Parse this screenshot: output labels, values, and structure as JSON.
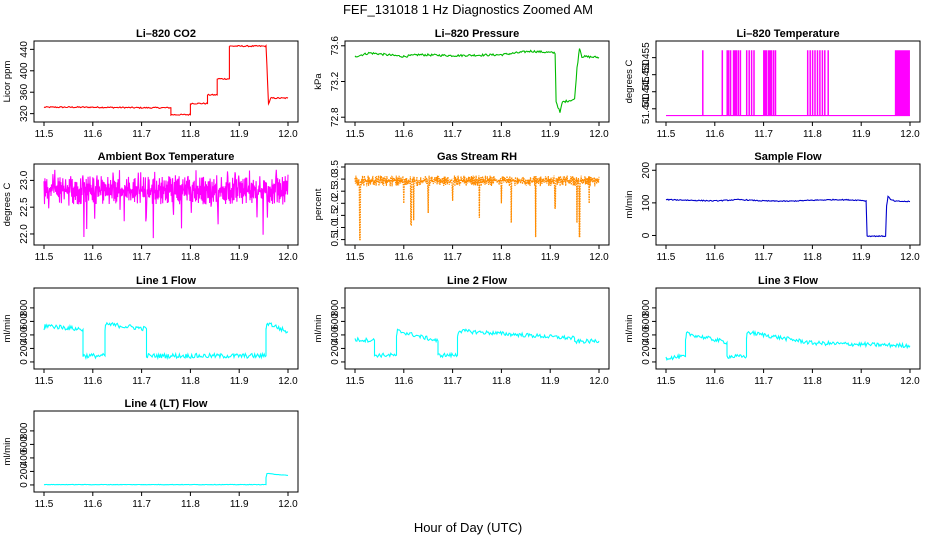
{
  "figure": {
    "title": "FEF_131018  1 Hz Diagnostics Zoomed AM",
    "xlabel": "Hour of Day (UTC)"
  },
  "chart_data": [
    {
      "type": "line",
      "title": "Li–820 CO2",
      "ylabel": "Licor ppm",
      "color": "#ff0000",
      "xlim": [
        11.5,
        12.0
      ],
      "ylim": [
        310,
        450
      ],
      "xticks": [
        "11.5",
        "11.6",
        "11.7",
        "11.8",
        "11.9",
        "12.0"
      ],
      "yticks": [
        "320",
        "360",
        "400",
        "440"
      ],
      "series": [
        {
          "x": [
            11.5,
            11.6,
            11.7,
            11.76,
            11.76,
            11.8,
            11.8,
            11.835,
            11.835,
            11.855,
            11.855,
            11.88,
            11.88,
            11.925,
            11.955,
            11.96,
            11.965,
            12.0
          ],
          "y": [
            332,
            332,
            331,
            331,
            318,
            318,
            339,
            339,
            355,
            355,
            385,
            385,
            446,
            446,
            446,
            338,
            349,
            349
          ],
          "noise": 1.2
        }
      ]
    },
    {
      "type": "line",
      "title": "Li–820 Pressure",
      "ylabel": "kPa",
      "color": "#00bb00",
      "xlim": [
        11.5,
        12.0
      ],
      "ylim": [
        72.78,
        73.62
      ],
      "xticks": [
        "11.5",
        "11.6",
        "11.7",
        "11.8",
        "11.9",
        "12.0"
      ],
      "yticks": [
        "72.8",
        "73.2",
        "73.6"
      ],
      "series": [
        {
          "x": [
            11.5,
            11.53,
            11.6,
            11.63,
            11.7,
            11.8,
            11.86,
            11.91,
            11.912,
            11.92,
            11.925,
            11.95,
            11.955,
            11.96,
            11.965,
            12.0
          ],
          "y": [
            73.48,
            73.52,
            73.48,
            73.5,
            73.49,
            73.5,
            73.54,
            73.52,
            72.98,
            72.85,
            72.97,
            73.0,
            73.35,
            73.58,
            73.48,
            73.47
          ],
          "noise": 0.012
        }
      ]
    },
    {
      "type": "line",
      "title": "Li–820 Temperature",
      "ylabel": "degrees C",
      "color": "#ff00ff",
      "xlim": [
        11.5,
        12.0
      ],
      "ylim": [
        51.437,
        51.459
      ],
      "xticks": [
        "11.5",
        "11.6",
        "11.7",
        "11.8",
        "11.9",
        "12.0"
      ],
      "yticks": [
        "51.440",
        "51.445",
        "51.450",
        "51.455"
      ],
      "baseline": 51.438,
      "high": 51.457,
      "spikes": [
        11.575,
        11.615,
        11.625,
        11.628,
        11.632,
        11.638,
        11.641,
        11.644,
        11.648,
        11.652,
        11.665,
        11.67,
        11.675,
        11.68,
        11.7,
        11.703,
        11.706,
        11.71,
        11.713,
        11.716,
        11.72,
        11.724,
        11.79,
        11.795,
        11.8,
        11.805,
        11.81,
        11.815,
        11.82,
        11.825,
        11.832,
        11.97,
        11.972,
        11.975,
        11.978,
        11.98,
        11.982,
        11.985,
        11.988,
        11.99,
        11.992,
        11.995,
        11.998
      ]
    },
    {
      "type": "line",
      "title": "Ambient Box Temperature",
      "ylabel": "degrees C",
      "color": "#ff00ff",
      "xlim": [
        11.5,
        12.0
      ],
      "ylim": [
        21.85,
        23.25
      ],
      "xticks": [
        "11.5",
        "11.6",
        "11.7",
        "11.8",
        "11.9",
        "12.0"
      ],
      "yticks": [
        "22.0",
        "22.5",
        "23.0"
      ],
      "band": [
        22.55,
        23.08
      ],
      "extremes": [
        21.9,
        23.2
      ]
    },
    {
      "type": "line",
      "title": "Gas Stream RH",
      "ylabel": "percent",
      "color": "#ff8c00",
      "xlim": [
        11.5,
        12.0
      ],
      "ylim": [
        0.4,
        3.5
      ],
      "xticks": [
        "11.5",
        "11.6",
        "11.7",
        "11.8",
        "11.9",
        "12.0"
      ],
      "yticks": [
        "0.5",
        "1.0",
        "1.5",
        "2.0",
        "2.5",
        "3.0",
        "3.5"
      ],
      "band": [
        2.7,
        3.15
      ],
      "dips": [
        {
          "x": 11.51,
          "y": 0.5
        },
        {
          "x": 11.6,
          "y": 2.0
        },
        {
          "x": 11.615,
          "y": 1.1
        },
        {
          "x": 11.62,
          "y": 1.3
        },
        {
          "x": 11.65,
          "y": 1.6
        },
        {
          "x": 11.7,
          "y": 2.1
        },
        {
          "x": 11.755,
          "y": 1.4
        },
        {
          "x": 11.8,
          "y": 2.0
        },
        {
          "x": 11.82,
          "y": 1.2
        },
        {
          "x": 11.87,
          "y": 0.6
        },
        {
          "x": 11.91,
          "y": 1.8
        },
        {
          "x": 11.955,
          "y": 1.2
        },
        {
          "x": 11.96,
          "y": 0.6
        },
        {
          "x": 11.98,
          "y": 2.0
        }
      ]
    },
    {
      "type": "line",
      "title": "Sample Flow",
      "ylabel": "ml/min",
      "color": "#0000cc",
      "xlim": [
        11.5,
        12.0
      ],
      "ylim": [
        -20,
        210
      ],
      "xticks": [
        "11.5",
        "11.6",
        "11.7",
        "11.8",
        "11.9",
        "12.0"
      ],
      "yticks": [
        "0",
        "100",
        "200"
      ],
      "series": [
        {
          "x": [
            11.5,
            11.55,
            11.6,
            11.65,
            11.7,
            11.75,
            11.8,
            11.85,
            11.9,
            11.91,
            11.912,
            11.95,
            11.952,
            11.955,
            11.96,
            11.97,
            12.0
          ],
          "y": [
            110,
            108,
            106,
            110,
            106,
            105,
            108,
            110,
            108,
            106,
            -2,
            -2,
            90,
            120,
            110,
            105,
            104
          ],
          "noise": 1.5
        }
      ]
    },
    {
      "type": "line",
      "title": "Line 1 Flow",
      "ylabel": "ml/min",
      "color": "#00ffff",
      "xlim": [
        11.5,
        12.0
      ],
      "ylim": [
        -60,
        1050
      ],
      "xticks": [
        "11.5",
        "11.6",
        "11.7",
        "11.8",
        "11.9",
        "12.0"
      ],
      "yticks": [
        "0",
        "200",
        "400",
        "600",
        "800"
      ],
      "series": [
        {
          "x": [
            11.5,
            11.502,
            11.58,
            11.58,
            11.625,
            11.625,
            11.627,
            11.71,
            11.71,
            11.955,
            11.955,
            11.958,
            12.0
          ],
          "y": [
            460,
            540,
            480,
            90,
            90,
            470,
            560,
            490,
            90,
            90,
            500,
            580,
            440
          ],
          "noise": 35
        }
      ]
    },
    {
      "type": "line",
      "title": "Line 2 Flow",
      "ylabel": "ml/min",
      "color": "#00ffff",
      "xlim": [
        11.5,
        12.0
      ],
      "ylim": [
        -60,
        1050
      ],
      "xticks": [
        "11.5",
        "11.6",
        "11.7",
        "11.8",
        "11.9",
        "12.0"
      ],
      "yticks": [
        "0",
        "200",
        "400",
        "600",
        "800"
      ],
      "series": [
        {
          "x": [
            11.5,
            11.54,
            11.54,
            11.585,
            11.585,
            11.587,
            11.67,
            11.67,
            11.71,
            11.71,
            11.712,
            11.95,
            11.95,
            12.0
          ],
          "y": [
            330,
            320,
            100,
            100,
            360,
            460,
            310,
            100,
            100,
            380,
            460,
            350,
            300,
            310
          ],
          "noise": 30
        }
      ]
    },
    {
      "type": "line",
      "title": "Line 3 Flow",
      "ylabel": "ml/min",
      "color": "#00ffff",
      "xlim": [
        11.5,
        12.0
      ],
      "ylim": [
        -60,
        1050
      ],
      "xticks": [
        "11.5",
        "11.6",
        "11.7",
        "11.8",
        "11.9",
        "12.0"
      ],
      "yticks": [
        "0",
        "200",
        "400",
        "600",
        "800"
      ],
      "series": [
        {
          "x": [
            11.5,
            11.54,
            11.54,
            11.542,
            11.625,
            11.625,
            11.665,
            11.665,
            11.667,
            11.8,
            11.9,
            12.0
          ],
          "y": [
            60,
            80,
            300,
            420,
            290,
            80,
            80,
            360,
            440,
            280,
            260,
            240
          ],
          "noise": 30
        }
      ]
    },
    {
      "type": "line",
      "title": "Line 4 (LT) Flow",
      "ylabel": "ml/min",
      "color": "#00ffff",
      "xlim": [
        11.5,
        12.0
      ],
      "ylim": [
        -60,
        1050
      ],
      "xticks": [
        "11.5",
        "11.6",
        "11.7",
        "11.8",
        "11.9",
        "12.0"
      ],
      "yticks": [
        "0",
        "200",
        "400",
        "600",
        "800"
      ],
      "series": [
        {
          "x": [
            11.5,
            11.6,
            11.7,
            11.8,
            11.9,
            11.955,
            11.955,
            11.957,
            12.0
          ],
          "y": [
            5,
            5,
            5,
            5,
            5,
            5,
            110,
            170,
            140
          ],
          "noise": 3
        }
      ]
    }
  ]
}
